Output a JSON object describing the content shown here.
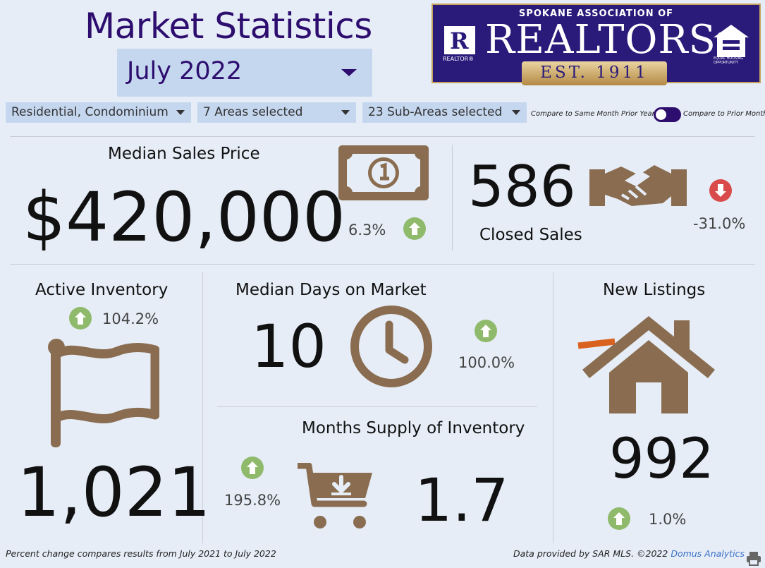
{
  "header": {
    "title": "Market Statistics",
    "month": "July 2022"
  },
  "filters": {
    "property_type": "Residential, Condominium",
    "areas": "7 Areas selected",
    "sub_areas": "23 Sub-Areas selected"
  },
  "compare_toggle": {
    "left_label": "Compare to Same Month Prior Year",
    "right_label": "Compare to Prior Month",
    "selected": "Compare to Prior Month"
  },
  "logo": {
    "top_text": "SPOKANE ASSOCIATION OF",
    "main_text": "REALTORS",
    "registered": "®",
    "est_text": "EST. 1911",
    "r_letter": "R",
    "realtor_small": "REALTOR®",
    "eho_text": "EQUAL HOUSING OPPORTUNITY"
  },
  "metrics": {
    "median_sales_price": {
      "label": "Median Sales Price",
      "value": "$420,000",
      "change": "6.3%",
      "direction": "up",
      "icon": "money-bill-icon"
    },
    "closed_sales": {
      "label": "Closed Sales",
      "value": "586",
      "change": "-31.0%",
      "direction": "down",
      "icon": "handshake-icon"
    },
    "active_inventory": {
      "label": "Active Inventory",
      "value": "1,021",
      "change": "104.2%",
      "direction": "up",
      "icon": "flag-icon"
    },
    "median_days_on_market": {
      "label": "Median Days on Market",
      "value": "10",
      "change": "100.0%",
      "direction": "up",
      "icon": "clock-icon"
    },
    "months_supply": {
      "label": "Months Supply of Inventory",
      "value": "1.7",
      "change": "195.8%",
      "direction": "up",
      "icon": "shopping-cart-icon"
    },
    "new_listings": {
      "label": "New Listings",
      "value": "992",
      "change": "1.0%",
      "direction": "up",
      "icon": "house-icon"
    }
  },
  "footer": {
    "note": "Percent change compares results from July 2021 to July 2022",
    "source_prefix": "Data provided by SAR MLS. ©2022 ",
    "source_link": "Domus Analytics"
  },
  "colors": {
    "brand": "#2d0d6e",
    "icon_brown": "#8a6d50",
    "up_green": "#8fba6b",
    "down_red": "#d94b4b"
  }
}
